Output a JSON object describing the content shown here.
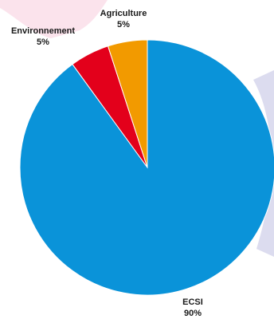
{
  "chart_data": {
    "type": "pie",
    "slices": [
      {
        "label": "ECSI",
        "value_label": "90%",
        "value": 90,
        "color": "#0a93d9"
      },
      {
        "label": "Environnement",
        "value_label": "5%",
        "value": 5,
        "color": "#e3001b"
      },
      {
        "label": "Agriculture",
        "value_label": "5%",
        "value": 5,
        "color": "#f29a00"
      }
    ],
    "start": "top",
    "direction": "clockwise"
  },
  "decor": {
    "blob_pink": "#fbe3ec",
    "blob_lavender": "#dcdcef"
  }
}
